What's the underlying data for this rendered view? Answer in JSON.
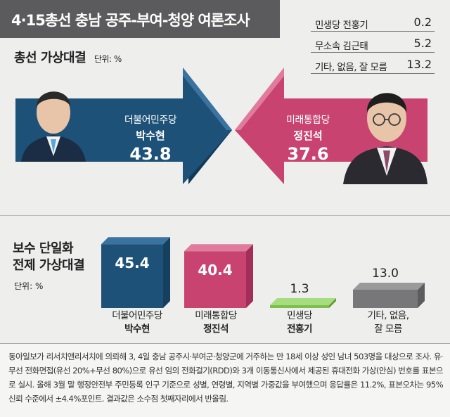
{
  "title": "4·15총선 충남 공주-부여-청양 여론조사",
  "side_list": [
    {
      "name": "민생당 전홍기",
      "value": "0.2"
    },
    {
      "name": "무소속 김근태",
      "value": "5.2"
    },
    {
      "name": "기타, 없음, 잘 모름",
      "value": "13.2"
    }
  ],
  "section1": {
    "title": "총선 가상대결",
    "unit": "단위: %"
  },
  "section2": {
    "title_line1": "보수 단일화",
    "title_line2": "전제 가상대결",
    "unit": "단위: %"
  },
  "colors": {
    "democratic": "#1d5177",
    "future": "#c8436f",
    "minsaeng": "#7cc04b",
    "other": "#77777a"
  },
  "chart_data": [
    {
      "type": "bar",
      "title": "총선 가상대결",
      "ylabel": "단위: %",
      "series": [
        {
          "party": "더불어민주당",
          "name": "박수현",
          "value": 43.8,
          "label": "43.8"
        },
        {
          "party": "미래통합당",
          "name": "정진석",
          "value": 37.6,
          "label": "37.6"
        }
      ]
    },
    {
      "type": "bar",
      "title": "보수 단일화 전제 가상대결",
      "ylabel": "단위: %",
      "categories": [
        "더불어민주당 박수현",
        "미래통합당 정진석",
        "민생당 전홍기",
        "기타, 없음, 잘 모름"
      ],
      "bars": [
        {
          "line1": "더불어민주당",
          "line2": "박수현",
          "value": 45.4,
          "label": "45.4",
          "color": "#1d5177",
          "side": "#154060",
          "top": "#3a73a0"
        },
        {
          "line1": "미래통합당",
          "line2": "정진석",
          "value": 40.4,
          "label": "40.4",
          "color": "#c8436f",
          "side": "#a22f58",
          "top": "#e07b9d"
        },
        {
          "line1": "민생당",
          "line2": "전홍기",
          "value": 1.3,
          "label": "1.3",
          "color": "#7cc04b",
          "side": "#5e9c33",
          "top": "#a6dd7e"
        },
        {
          "line1": "기타, 없음,",
          "line2": "잘 모름",
          "value": 13.0,
          "label": "13.0",
          "color": "#77777a",
          "side": "#5c5c5f",
          "top": "#9a9a9c"
        }
      ]
    }
  ],
  "footnote": "동아일보가 리서치앤리서치에 의뢰해 3, 4일 충남 공주시·부여군·청양군에 거주하는 만 18세 이상 성인 남녀 503명을 대상으로 조사. 유·무선 전화면접(유선 20%+무선 80%)으로 유선 임의 전화걸기(RDD)와 3개 이동통신사에서 제공된 휴대전화 가상(안심) 번호를 표본으로 실시. 올해 3월 말 행정안전부 주민등록 인구 기준으로 성별, 연령별, 지역별 가중값을 부여했으며 응답률은 11.2%, 표본오차는 95% 신뢰 수준에서 ±4.4%포인트. 결과값은 소수점 첫째자리에서 반올림."
}
